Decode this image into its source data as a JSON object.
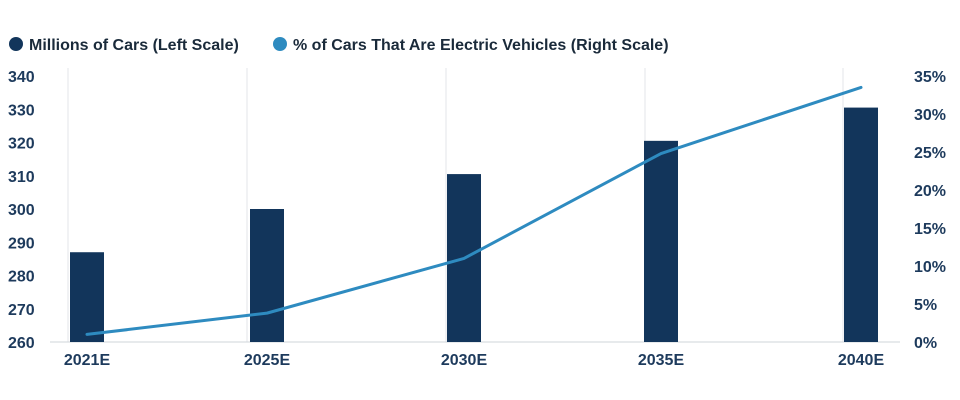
{
  "chart_data": {
    "type": "bar+line",
    "categories": [
      "2021E",
      "2025E",
      "2030E",
      "2035E",
      "2040E"
    ],
    "series": [
      {
        "name": "Millions of Cars (Left Scale)",
        "type": "bar",
        "axis": "left",
        "color": "#12355b",
        "values": [
          287,
          300,
          310.5,
          320.5,
          330.5
        ]
      },
      {
        "name": "% of Cars That Are Electric Vehicles (Right Scale)",
        "type": "line",
        "axis": "right",
        "color": "#2e8bc0",
        "values": [
          1,
          3.8,
          11,
          24.8,
          33.5
        ]
      }
    ],
    "left_axis": {
      "ylim": [
        260,
        340
      ],
      "ticks": [
        260,
        270,
        280,
        290,
        300,
        310,
        320,
        330,
        340
      ],
      "tick_labels": [
        "260",
        "270",
        "280",
        "290",
        "300",
        "310",
        "320",
        "330",
        "340"
      ]
    },
    "right_axis": {
      "ylim": [
        0,
        35
      ],
      "ticks": [
        0,
        5,
        10,
        15,
        20,
        25,
        30,
        35
      ],
      "tick_labels": [
        "0%",
        "5%",
        "10%",
        "15%",
        "20%",
        "25%",
        "30%",
        "35%"
      ]
    },
    "legend_position": "top-left",
    "grid": "vertical"
  }
}
